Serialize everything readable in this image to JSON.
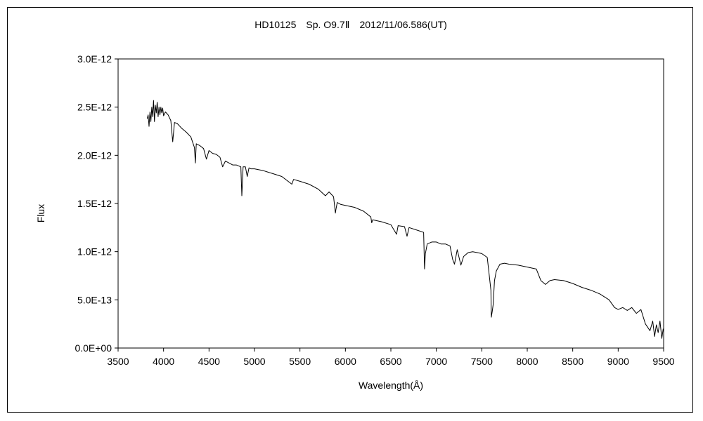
{
  "chart_data": {
    "type": "line",
    "title": "HD10125　Sp. O9.7Ⅱ　2012/11/06.586(UT)",
    "xlabel": "Wavelength(Å)",
    "ylabel": "Flux",
    "xlim": [
      3500,
      9500
    ],
    "ylim": [
      0,
      3e-12
    ],
    "x_ticks": [
      3500,
      4000,
      4500,
      5000,
      5500,
      6000,
      6500,
      7000,
      7500,
      8000,
      8500,
      9000,
      9500
    ],
    "y_ticks": [
      0,
      5e-13,
      1e-12,
      1.5e-12,
      2e-12,
      2.5e-12,
      3e-12
    ],
    "x_tick_labels": [
      "3500",
      "4000",
      "4500",
      "5000",
      "5500",
      "6000",
      "6500",
      "7000",
      "7500",
      "8000",
      "8500",
      "9000",
      "9500"
    ],
    "y_tick_labels": [
      "0.0E+00",
      "5.0E-13",
      "1.0E-12",
      "1.5E-12",
      "2.0E-12",
      "2.5E-12",
      "3.0E-12"
    ],
    "grid": false,
    "legend": "none",
    "line_color": "#000000",
    "series": [
      {
        "points": [
          [
            3820,
            2.38e-12
          ],
          [
            3830,
            2.42e-12
          ],
          [
            3840,
            2.3e-12
          ],
          [
            3850,
            2.45e-12
          ],
          [
            3860,
            2.35e-12
          ],
          [
            3870,
            2.5e-12
          ],
          [
            3880,
            2.4e-12
          ],
          [
            3890,
            2.57e-12
          ],
          [
            3900,
            2.35e-12
          ],
          [
            3910,
            2.52e-12
          ],
          [
            3920,
            2.44e-12
          ],
          [
            3930,
            2.55e-12
          ],
          [
            3940,
            2.4e-12
          ],
          [
            3950,
            2.5e-12
          ],
          [
            3960,
            2.42e-12
          ],
          [
            3970,
            2.5e-12
          ],
          [
            3980,
            2.44e-12
          ],
          [
            3990,
            2.49e-12
          ],
          [
            4000,
            2.41e-12
          ],
          [
            4020,
            2.45e-12
          ],
          [
            4050,
            2.42e-12
          ],
          [
            4080,
            2.36e-12
          ],
          [
            4101,
            2.14e-12
          ],
          [
            4120,
            2.34e-12
          ],
          [
            4150,
            2.33e-12
          ],
          [
            4200,
            2.28e-12
          ],
          [
            4250,
            2.24e-12
          ],
          [
            4300,
            2.19e-12
          ],
          [
            4340,
            2.08e-12
          ],
          [
            4350,
            1.92e-12
          ],
          [
            4360,
            2.12e-12
          ],
          [
            4400,
            2.1e-12
          ],
          [
            4440,
            2.07e-12
          ],
          [
            4471,
            1.96e-12
          ],
          [
            4500,
            2.05e-12
          ],
          [
            4540,
            2.02e-12
          ],
          [
            4580,
            2.01e-12
          ],
          [
            4620,
            1.98e-12
          ],
          [
            4650,
            1.88e-12
          ],
          [
            4680,
            1.94e-12
          ],
          [
            4720,
            1.92e-12
          ],
          [
            4760,
            1.9e-12
          ],
          [
            4800,
            1.9e-12
          ],
          [
            4850,
            1.88e-12
          ],
          [
            4861,
            1.58e-12
          ],
          [
            4875,
            1.88e-12
          ],
          [
            4900,
            1.88e-12
          ],
          [
            4920,
            1.78e-12
          ],
          [
            4940,
            1.87e-12
          ],
          [
            4960,
            1.86e-12
          ],
          [
            5000,
            1.86e-12
          ],
          [
            5100,
            1.84e-12
          ],
          [
            5200,
            1.81e-12
          ],
          [
            5300,
            1.78e-12
          ],
          [
            5411,
            1.7e-12
          ],
          [
            5430,
            1.75e-12
          ],
          [
            5500,
            1.73e-12
          ],
          [
            5600,
            1.7e-12
          ],
          [
            5700,
            1.65e-12
          ],
          [
            5780,
            1.58e-12
          ],
          [
            5820,
            1.62e-12
          ],
          [
            5870,
            1.57e-12
          ],
          [
            5890,
            1.4e-12
          ],
          [
            5896,
            1.44e-12
          ],
          [
            5910,
            1.51e-12
          ],
          [
            5950,
            1.49e-12
          ],
          [
            6000,
            1.48e-12
          ],
          [
            6100,
            1.46e-12
          ],
          [
            6200,
            1.42e-12
          ],
          [
            6280,
            1.36e-12
          ],
          [
            6290,
            1.3e-12
          ],
          [
            6300,
            1.33e-12
          ],
          [
            6400,
            1.31e-12
          ],
          [
            6500,
            1.28e-12
          ],
          [
            6563,
            1.18e-12
          ],
          [
            6580,
            1.27e-12
          ],
          [
            6650,
            1.26e-12
          ],
          [
            6678,
            1.16e-12
          ],
          [
            6700,
            1.25e-12
          ],
          [
            6800,
            1.22e-12
          ],
          [
            6860,
            1.2e-12
          ],
          [
            6870,
            8.2e-13
          ],
          [
            6880,
            9.8e-13
          ],
          [
            6900,
            1.08e-12
          ],
          [
            6950,
            1.1e-12
          ],
          [
            7000,
            1.1e-12
          ],
          [
            7050,
            1.08e-12
          ],
          [
            7100,
            1.08e-12
          ],
          [
            7150,
            1.06e-12
          ],
          [
            7180,
            9.2e-13
          ],
          [
            7200,
            8.7e-13
          ],
          [
            7230,
            1.02e-12
          ],
          [
            7270,
            8.6e-13
          ],
          [
            7300,
            9.5e-13
          ],
          [
            7350,
            9.9e-13
          ],
          [
            7400,
            1e-12
          ],
          [
            7450,
            9.9e-13
          ],
          [
            7500,
            9.8e-13
          ],
          [
            7560,
            9.4e-13
          ],
          [
            7600,
            6e-13
          ],
          [
            7605,
            3.2e-13
          ],
          [
            7615,
            3.8e-13
          ],
          [
            7625,
            4.5e-13
          ],
          [
            7640,
            7e-13
          ],
          [
            7660,
            8e-13
          ],
          [
            7700,
            8.7e-13
          ],
          [
            7750,
            8.8e-13
          ],
          [
            7800,
            8.7e-13
          ],
          [
            7900,
            8.6e-13
          ],
          [
            8000,
            8.4e-13
          ],
          [
            8100,
            8.2e-13
          ],
          [
            8150,
            7e-13
          ],
          [
            8200,
            6.6e-13
          ],
          [
            8250,
            7e-13
          ],
          [
            8300,
            7.1e-13
          ],
          [
            8400,
            7e-13
          ],
          [
            8500,
            6.7e-13
          ],
          [
            8600,
            6.3e-13
          ],
          [
            8700,
            6e-13
          ],
          [
            8800,
            5.6e-13
          ],
          [
            8900,
            5e-13
          ],
          [
            8960,
            4.2e-13
          ],
          [
            9000,
            4e-13
          ],
          [
            9050,
            4.2e-13
          ],
          [
            9100,
            3.9e-13
          ],
          [
            9150,
            4.2e-13
          ],
          [
            9200,
            3.6e-13
          ],
          [
            9250,
            4e-13
          ],
          [
            9300,
            2.5e-13
          ],
          [
            9350,
            1.8e-13
          ],
          [
            9380,
            2.8e-13
          ],
          [
            9400,
            1.2e-13
          ],
          [
            9420,
            2.4e-13
          ],
          [
            9440,
            1.6e-13
          ],
          [
            9460,
            2.8e-13
          ],
          [
            9480,
            1e-13
          ],
          [
            9495,
            2e-13
          ]
        ]
      }
    ]
  }
}
